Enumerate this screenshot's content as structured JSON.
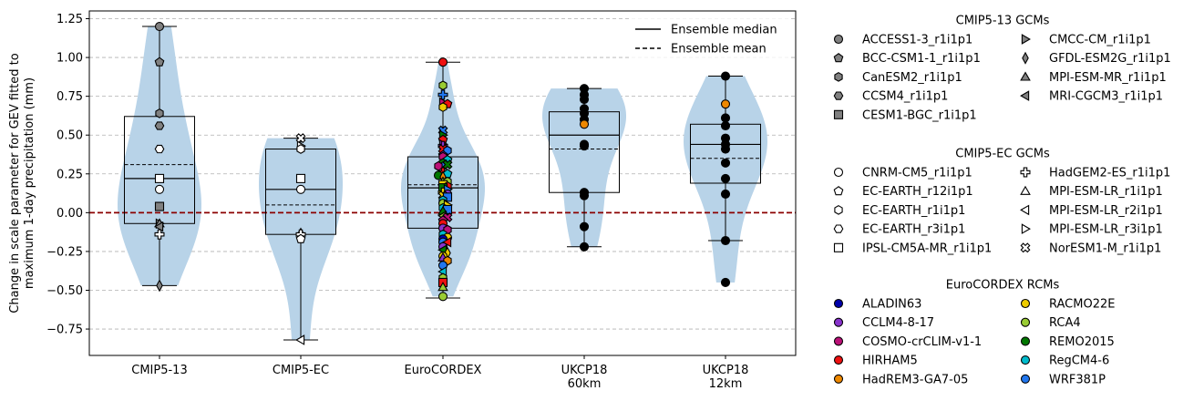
{
  "chart_data": {
    "type": "violin+box+scatter",
    "ylabel_lines": [
      "Change in scale parameter for GEV fitted to",
      "maximum 1-day precipitation (mm)"
    ],
    "ylim": [
      -0.92,
      1.3
    ],
    "yticks": [
      -0.75,
      -0.5,
      -0.25,
      0.0,
      0.25,
      0.5,
      0.75,
      1.0,
      1.25
    ],
    "ytick_labels": [
      "−0.75",
      "−0.50",
      "−0.25",
      "0.00",
      "0.25",
      "0.50",
      "0.75",
      "1.00",
      "1.25"
    ],
    "grid": "horizontal dashed",
    "zero_line": {
      "value": 0.0,
      "color": "#8b0000",
      "style": "dashed"
    },
    "violin_color": "#b8d3e8",
    "line_legend": [
      {
        "label": "Ensemble median",
        "style": "solid"
      },
      {
        "label": "Ensemble mean",
        "style": "dashed"
      }
    ],
    "groups": [
      {
        "label": [
          "CMIP5-13"
        ],
        "whisker": [
          -0.47,
          1.2
        ],
        "box": [
          -0.07,
          0.62
        ],
        "median": 0.22,
        "mean": 0.31,
        "points": [
          {
            "v": 1.2,
            "m": "circle",
            "c": "#808080"
          },
          {
            "v": 0.97,
            "m": "pentagon",
            "c": "#808080"
          },
          {
            "v": 0.64,
            "m": "hexagon",
            "c": "#808080"
          },
          {
            "v": 0.56,
            "m": "hexagon2",
            "c": "#808080"
          },
          {
            "v": 0.04,
            "m": "square",
            "c": "#808080"
          },
          {
            "v": -0.07,
            "m": "triangle-right",
            "c": "#808080"
          },
          {
            "v": -0.07,
            "m": "triangle-up",
            "c": "#808080"
          },
          {
            "v": -0.09,
            "m": "triangle-left",
            "c": "#808080"
          },
          {
            "v": -0.47,
            "m": "diamond",
            "c": "#808080"
          },
          {
            "v": 0.41,
            "m": "hexagon2",
            "c": "#ffffff"
          },
          {
            "v": 0.22,
            "m": "square",
            "c": "#ffffff"
          },
          {
            "v": 0.15,
            "m": "circle",
            "c": "#ffffff"
          },
          {
            "v": -0.14,
            "m": "plus",
            "c": "#ffffff"
          }
        ]
      },
      {
        "label": [
          "CMIP5-EC"
        ],
        "whisker": [
          -0.82,
          0.48
        ],
        "box": [
          -0.14,
          0.41
        ],
        "median": 0.15,
        "mean": 0.05,
        "points": [
          {
            "v": 0.48,
            "m": "cross",
            "c": "#ffffff"
          },
          {
            "v": 0.43,
            "m": "triangle-right",
            "c": "#ffffff"
          },
          {
            "v": 0.41,
            "m": "hexagon",
            "c": "#ffffff"
          },
          {
            "v": 0.22,
            "m": "square",
            "c": "#ffffff"
          },
          {
            "v": 0.15,
            "m": "circle",
            "c": "#ffffff"
          },
          {
            "v": -0.13,
            "m": "triangle-up",
            "c": "#ffffff"
          },
          {
            "v": -0.14,
            "m": "plus",
            "c": "#ffffff"
          },
          {
            "v": -0.17,
            "m": "pentagon",
            "c": "#ffffff"
          },
          {
            "v": -0.82,
            "m": "triangle-left",
            "c": "#ffffff"
          }
        ]
      },
      {
        "label": [
          "EuroCORDEX"
        ],
        "whisker": [
          -0.55,
          0.97
        ],
        "box": [
          -0.1,
          0.36
        ],
        "median": 0.16,
        "mean": 0.18,
        "points": [
          {
            "v": 0.97,
            "m": "circle",
            "c": "#ee1111"
          },
          {
            "v": 0.82,
            "m": "hexagon",
            "c": "#99cc33"
          },
          {
            "v": 0.76,
            "m": "plus",
            "c": "#2277ee"
          },
          {
            "v": 0.71,
            "m": "triangle-right",
            "c": "#bb1177"
          },
          {
            "v": 0.7,
            "m": "pentagon",
            "c": "#ee1111"
          },
          {
            "v": 0.68,
            "m": "hexagon",
            "c": "#eecc00"
          },
          {
            "v": 0.53,
            "m": "cross",
            "c": "#2277ee"
          },
          {
            "v": 0.5,
            "m": "triangle-right",
            "c": "#007700"
          },
          {
            "v": 0.47,
            "m": "pentagon",
            "c": "#ee1111"
          },
          {
            "v": 0.44,
            "m": "triangle-right",
            "c": "#8833cc"
          },
          {
            "v": 0.43,
            "m": "plus",
            "c": "#8833cc"
          },
          {
            "v": 0.41,
            "m": "cross",
            "c": "#ee1111"
          },
          {
            "v": 0.4,
            "m": "hexagon",
            "c": "#2277ee"
          },
          {
            "v": 0.37,
            "m": "pentagon",
            "c": "#8833cc"
          },
          {
            "v": 0.36,
            "m": "hexagon",
            "c": "#bb1177"
          },
          {
            "v": 0.34,
            "m": "pentagon",
            "c": "#00bbcc"
          },
          {
            "v": 0.32,
            "m": "hexagon",
            "c": "#007700"
          },
          {
            "v": 0.31,
            "m": "triangle-left",
            "c": "#2277ee"
          },
          {
            "v": 0.31,
            "m": "cross",
            "c": "#007700"
          },
          {
            "v": 0.3,
            "m": "hexagon",
            "c": "#bb1177"
          },
          {
            "v": 0.26,
            "m": "plus",
            "c": "#ee1111"
          },
          {
            "v": 0.25,
            "m": "pentagon",
            "c": "#00bbcc"
          },
          {
            "v": 0.24,
            "m": "circle",
            "c": "#007700"
          },
          {
            "v": 0.23,
            "m": "diamond",
            "c": "#ee8800"
          },
          {
            "v": 0.2,
            "m": "triangle-up",
            "c": "#99cc33"
          },
          {
            "v": 0.2,
            "m": "hexagon",
            "c": "#99cc33"
          },
          {
            "v": 0.18,
            "m": "square",
            "c": "#eecc00"
          },
          {
            "v": 0.17,
            "m": "hexagon",
            "c": "#ee1111"
          },
          {
            "v": 0.16,
            "m": "square",
            "c": "#007700"
          },
          {
            "v": 0.15,
            "m": "triangle-right",
            "c": "#2277ee"
          },
          {
            "v": 0.13,
            "m": "plus",
            "c": "#eecc00"
          },
          {
            "v": 0.12,
            "m": "circle",
            "c": "#8833cc"
          },
          {
            "v": 0.11,
            "m": "cross",
            "c": "#eecc00"
          },
          {
            "v": 0.1,
            "m": "square",
            "c": "#2277ee"
          },
          {
            "v": 0.08,
            "m": "hexagon",
            "c": "#00bbcc"
          },
          {
            "v": 0.06,
            "m": "circle",
            "c": "#99cc33"
          },
          {
            "v": 0.05,
            "m": "triangle-right",
            "c": "#eecc00"
          },
          {
            "v": 0.03,
            "m": "hexagon",
            "c": "#00bbcc"
          },
          {
            "v": 0.02,
            "m": "square",
            "c": "#2277ee"
          },
          {
            "v": 0.01,
            "m": "triangle-up",
            "c": "#007700"
          },
          {
            "v": -0.02,
            "m": "triangle-left",
            "c": "#99cc33"
          },
          {
            "v": -0.03,
            "m": "cross",
            "c": "#bb1177"
          },
          {
            "v": -0.05,
            "m": "pentagon",
            "c": "#bb1177"
          },
          {
            "v": -0.07,
            "m": "circle",
            "c": "#ee1111"
          },
          {
            "v": -0.1,
            "m": "circle",
            "c": "#8833cc"
          },
          {
            "v": -0.11,
            "m": "hexagon",
            "c": "#bb1177"
          },
          {
            "v": -0.14,
            "m": "hexagon",
            "c": "#00bbcc"
          },
          {
            "v": -0.16,
            "m": "circle",
            "c": "#eecc00"
          },
          {
            "v": -0.17,
            "m": "circle",
            "c": "#0000aa"
          },
          {
            "v": -0.19,
            "m": "circle",
            "c": "#2277ee"
          },
          {
            "v": -0.19,
            "m": "triangle-left",
            "c": "#ee1111"
          },
          {
            "v": -0.22,
            "m": "circle",
            "c": "#8833cc"
          },
          {
            "v": -0.24,
            "m": "triangle-left",
            "c": "#007700"
          },
          {
            "v": -0.26,
            "m": "diamond",
            "c": "#eecc00"
          },
          {
            "v": -0.28,
            "m": "circle",
            "c": "#eecc00"
          },
          {
            "v": -0.29,
            "m": "triangle-up",
            "c": "#8833cc"
          },
          {
            "v": -0.31,
            "m": "hexagon",
            "c": "#ee8800"
          },
          {
            "v": -0.34,
            "m": "circle",
            "c": "#2277ee"
          },
          {
            "v": -0.38,
            "m": "triangle-left",
            "c": "#00bbcc"
          },
          {
            "v": -0.42,
            "m": "hexagon",
            "c": "#99cc33"
          },
          {
            "v": -0.45,
            "m": "square",
            "c": "#ee1111"
          },
          {
            "v": -0.48,
            "m": "triangle-up",
            "c": "#99cc33"
          },
          {
            "v": -0.54,
            "m": "circle",
            "c": "#99cc33"
          }
        ]
      },
      {
        "label": [
          "UKCP18",
          "60km"
        ],
        "whisker": [
          -0.22,
          0.8
        ],
        "box": [
          0.13,
          0.65
        ],
        "median": 0.5,
        "mean": 0.41,
        "points": [
          {
            "v": 0.8,
            "m": "circle",
            "c": "#000000"
          },
          {
            "v": 0.76,
            "m": "circle",
            "c": "#000000"
          },
          {
            "v": 0.73,
            "m": "circle",
            "c": "#000000"
          },
          {
            "v": 0.67,
            "m": "circle",
            "c": "#000000"
          },
          {
            "v": 0.64,
            "m": "circle",
            "c": "#000000"
          },
          {
            "v": 0.6,
            "m": "circle",
            "c": "#000000"
          },
          {
            "v": 0.57,
            "m": "circle",
            "c": "#ee8800"
          },
          {
            "v": 0.44,
            "m": "circle",
            "c": "#000000"
          },
          {
            "v": 0.43,
            "m": "circle",
            "c": "#000000"
          },
          {
            "v": 0.13,
            "m": "circle",
            "c": "#000000"
          },
          {
            "v": 0.11,
            "m": "circle",
            "c": "#000000"
          },
          {
            "v": -0.09,
            "m": "circle",
            "c": "#000000"
          },
          {
            "v": -0.22,
            "m": "circle",
            "c": "#000000"
          }
        ]
      },
      {
        "label": [
          "UKCP18",
          "12km"
        ],
        "whisker": [
          -0.18,
          0.88
        ],
        "box": [
          0.19,
          0.57
        ],
        "median": 0.44,
        "mean": 0.35,
        "points": [
          {
            "v": 0.88,
            "m": "circle",
            "c": "#000000"
          },
          {
            "v": 0.7,
            "m": "circle",
            "c": "#ee8800"
          },
          {
            "v": 0.61,
            "m": "circle",
            "c": "#000000"
          },
          {
            "v": 0.56,
            "m": "circle",
            "c": "#000000"
          },
          {
            "v": 0.48,
            "m": "circle",
            "c": "#000000"
          },
          {
            "v": 0.44,
            "m": "circle",
            "c": "#000000"
          },
          {
            "v": 0.41,
            "m": "circle",
            "c": "#000000"
          },
          {
            "v": 0.32,
            "m": "circle",
            "c": "#000000"
          },
          {
            "v": 0.22,
            "m": "circle",
            "c": "#000000"
          },
          {
            "v": 0.12,
            "m": "circle",
            "c": "#000000"
          },
          {
            "v": -0.18,
            "m": "circle",
            "c": "#000000"
          },
          {
            "v": -0.45,
            "m": "circle",
            "c": "#000000"
          }
        ]
      }
    ],
    "legend_sections": [
      {
        "title": "CMIP5-13 GCMs",
        "items": [
          {
            "label": "ACCESS1-3_r1i1p1",
            "m": "circle",
            "c": "#808080"
          },
          {
            "label": "BCC-CSM1-1_r1i1p1",
            "m": "pentagon",
            "c": "#808080"
          },
          {
            "label": "CanESM2_r1i1p1",
            "m": "hexagon",
            "c": "#808080"
          },
          {
            "label": "CCSM4_r1i1p1",
            "m": "hexagon2",
            "c": "#808080"
          },
          {
            "label": "CESM1-BGC_r1i1p1",
            "m": "square",
            "c": "#808080"
          },
          {
            "label": "CMCC-CM_r1i1p1",
            "m": "triangle-right",
            "c": "#808080"
          },
          {
            "label": "GFDL-ESM2G_r1i1p1",
            "m": "diamond",
            "c": "#808080"
          },
          {
            "label": "MPI-ESM-MR_r1i1p1",
            "m": "triangle-up",
            "c": "#808080"
          },
          {
            "label": "MRI-CGCM3_r1i1p1",
            "m": "triangle-left",
            "c": "#808080"
          }
        ]
      },
      {
        "title": "CMIP5-EC GCMs",
        "items": [
          {
            "label": "CNRM-CM5_r1i1p1",
            "m": "circle",
            "c": "#ffffff"
          },
          {
            "label": "EC-EARTH_r12i1p1",
            "m": "pentagon",
            "c": "#ffffff"
          },
          {
            "label": "EC-EARTH_r1i1p1",
            "m": "hexagon",
            "c": "#ffffff"
          },
          {
            "label": "EC-EARTH_r3i1p1",
            "m": "hexagon2",
            "c": "#ffffff"
          },
          {
            "label": "IPSL-CM5A-MR_r1i1p1",
            "m": "square",
            "c": "#ffffff"
          },
          {
            "label": "HadGEM2-ES_r1i1p1",
            "m": "plus",
            "c": "#ffffff"
          },
          {
            "label": "MPI-ESM-LR_r1i1p1",
            "m": "triangle-up",
            "c": "#ffffff"
          },
          {
            "label": "MPI-ESM-LR_r2i1p1",
            "m": "triangle-left",
            "c": "#ffffff"
          },
          {
            "label": "MPI-ESM-LR_r3i1p1",
            "m": "triangle-right",
            "c": "#ffffff"
          },
          {
            "label": "NorESM1-M_r1i1p1",
            "m": "cross",
            "c": "#ffffff"
          }
        ]
      },
      {
        "title": "EuroCORDEX RCMs",
        "items": [
          {
            "label": "ALADIN63",
            "m": "circle",
            "c": "#0000aa"
          },
          {
            "label": "CCLM4-8-17",
            "m": "circle",
            "c": "#8833cc"
          },
          {
            "label": "COSMO-crCLIM-v1-1",
            "m": "circle",
            "c": "#bb1177"
          },
          {
            "label": "HIRHAM5",
            "m": "circle",
            "c": "#ee1111"
          },
          {
            "label": "HadREM3-GA7-05",
            "m": "circle",
            "c": "#ee8800"
          },
          {
            "label": "RACMO22E",
            "m": "circle",
            "c": "#eecc00"
          },
          {
            "label": "RCA4",
            "m": "circle",
            "c": "#99cc33"
          },
          {
            "label": "REMO2015",
            "m": "circle",
            "c": "#007700"
          },
          {
            "label": "RegCM4-6",
            "m": "circle",
            "c": "#00bbcc"
          },
          {
            "label": "WRF381P",
            "m": "circle",
            "c": "#2277ee"
          }
        ]
      }
    ]
  }
}
